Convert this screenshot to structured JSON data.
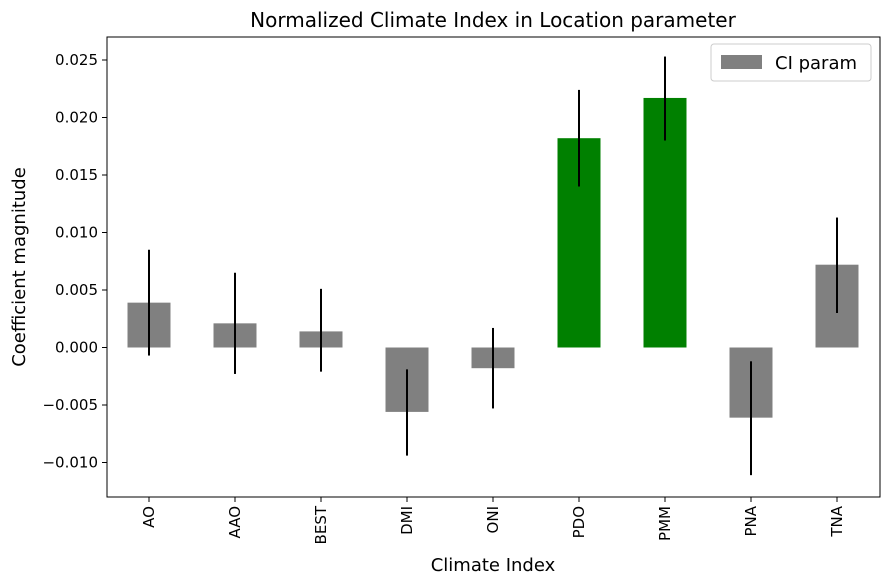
{
  "chart_data": {
    "type": "bar",
    "title": "Normalized Climate Index in Location parameter",
    "xlabel": "Climate Index",
    "ylabel": "Coefficient magnitude",
    "categories": [
      "AO",
      "AAO",
      "BEST",
      "DMI",
      "ONI",
      "PDO",
      "PMM",
      "PNA",
      "TNA"
    ],
    "series": [
      {
        "name": "CI param",
        "values": [
          0.0039,
          0.0021,
          0.0014,
          -0.0056,
          -0.0018,
          0.0182,
          0.0217,
          -0.0061,
          0.0072
        ],
        "error_low": [
          -0.0007,
          -0.0023,
          -0.0021,
          -0.0094,
          -0.0053,
          0.014,
          0.018,
          -0.0111,
          0.003
        ],
        "error_high": [
          0.0085,
          0.0065,
          0.0051,
          -0.0019,
          0.0017,
          0.0224,
          0.0253,
          -0.0012,
          0.0113
        ],
        "colors": [
          "#808080",
          "#808080",
          "#808080",
          "#808080",
          "#808080",
          "#008000",
          "#008000",
          "#808080",
          "#808080"
        ]
      }
    ],
    "ylim": [
      -0.013,
      0.027
    ],
    "yticks": [
      -0.01,
      -0.005,
      0.0,
      0.005,
      0.01,
      0.015,
      0.02,
      0.025
    ],
    "ytick_labels": [
      "−0.010",
      "−0.005",
      "0.000",
      "0.005",
      "0.010",
      "0.015",
      "0.020",
      "0.025"
    ],
    "grid": false,
    "legend": {
      "placement": "top-right",
      "entries": [
        {
          "label": "CI param",
          "color": "#808080"
        }
      ]
    },
    "x_tick_rotation": 90
  }
}
